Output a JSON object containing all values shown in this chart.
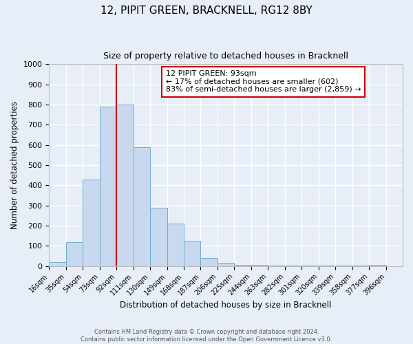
{
  "title": "12, PIPIT GREEN, BRACKNELL, RG12 8BY",
  "subtitle": "Size of property relative to detached houses in Bracknell",
  "xlabel": "Distribution of detached houses by size in Bracknell",
  "ylabel": "Number of detached properties",
  "bin_labels": [
    "16sqm",
    "35sqm",
    "54sqm",
    "73sqm",
    "92sqm",
    "111sqm",
    "130sqm",
    "149sqm",
    "168sqm",
    "187sqm",
    "206sqm",
    "225sqm",
    "244sqm",
    "263sqm",
    "282sqm",
    "301sqm",
    "320sqm",
    "339sqm",
    "358sqm",
    "377sqm",
    "396sqm"
  ],
  "bin_edges": [
    16,
    35,
    54,
    73,
    92,
    111,
    130,
    149,
    168,
    187,
    206,
    225,
    244,
    263,
    282,
    301,
    320,
    339,
    358,
    377,
    396
  ],
  "bar_heights": [
    20,
    120,
    430,
    790,
    800,
    590,
    290,
    210,
    125,
    40,
    15,
    5,
    5,
    2,
    2,
    2,
    2,
    2,
    2,
    5
  ],
  "bar_color": "#c8d8ef",
  "bar_edge_color": "#6baed6",
  "vline_x": 92,
  "vline_color": "#cc0000",
  "annotation_text": "12 PIPIT GREEN: 93sqm\n← 17% of detached houses are smaller (602)\n83% of semi-detached houses are larger (2,859) →",
  "annotation_box_edge_color": "#cc0000",
  "annotation_box_face_color": "#ffffff",
  "ylim": [
    0,
    1000
  ],
  "yticks": [
    0,
    100,
    200,
    300,
    400,
    500,
    600,
    700,
    800,
    900,
    1000
  ],
  "bg_color": "#e8eef8",
  "grid_color": "#ffffff",
  "footer_text": "Contains HM Land Registry data © Crown copyright and database right 2024.\nContains public sector information licensed under the Open Government Licence v3.0.",
  "title_fontsize": 11,
  "subtitle_fontsize": 9,
  "annotation_fontsize": 8
}
